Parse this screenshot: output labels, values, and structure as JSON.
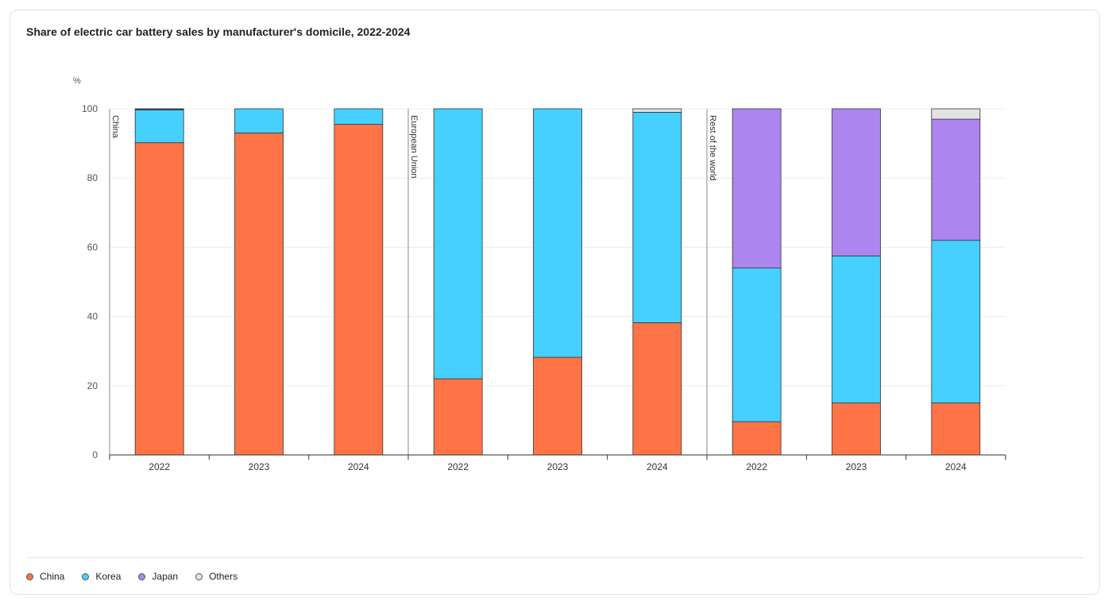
{
  "title": "Share of electric car battery sales by manufacturer's domicile, 2022-2024",
  "legend": [
    {
      "name": "China",
      "color": "#ff7447"
    },
    {
      "name": "Korea",
      "color": "#45d0ff"
    },
    {
      "name": "Japan",
      "color": "#ad85ee"
    },
    {
      "name": "Others",
      "color": "#e3e3e3"
    }
  ],
  "chart_data": {
    "type": "bar",
    "stacked": true,
    "title": "Share of electric car battery sales by manufacturer's domicile, 2022-2024",
    "ylabel": "%",
    "xlabel": "",
    "ylim": [
      0,
      100
    ],
    "yticks": [
      0,
      20,
      40,
      60,
      80,
      100
    ],
    "grid": true,
    "legend_position": "bottom-left",
    "groups": [
      {
        "name": "China",
        "categories": [
          "2022",
          "2023",
          "2024"
        ]
      },
      {
        "name": "European Union",
        "categories": [
          "2022",
          "2023",
          "2024"
        ]
      },
      {
        "name": "Rest of the world",
        "categories": [
          "2022",
          "2023",
          "2024"
        ]
      }
    ],
    "series": [
      {
        "name": "China",
        "values": [
          90.2,
          93.0,
          95.5,
          22.0,
          28.2,
          38.2,
          9.6,
          15.0,
          15.0
        ]
      },
      {
        "name": "Korea",
        "values": [
          9.5,
          7.0,
          4.5,
          78.0,
          71.8,
          60.8,
          44.4,
          42.5,
          47.0
        ]
      },
      {
        "name": "Japan",
        "values": [
          0.2,
          0.0,
          0.0,
          0.0,
          0.0,
          0.0,
          46.0,
          42.5,
          35.0
        ]
      },
      {
        "name": "Others",
        "values": [
          0.1,
          0.0,
          0.0,
          0.0,
          0.0,
          1.0,
          0.0,
          0.0,
          3.0
        ]
      }
    ]
  }
}
